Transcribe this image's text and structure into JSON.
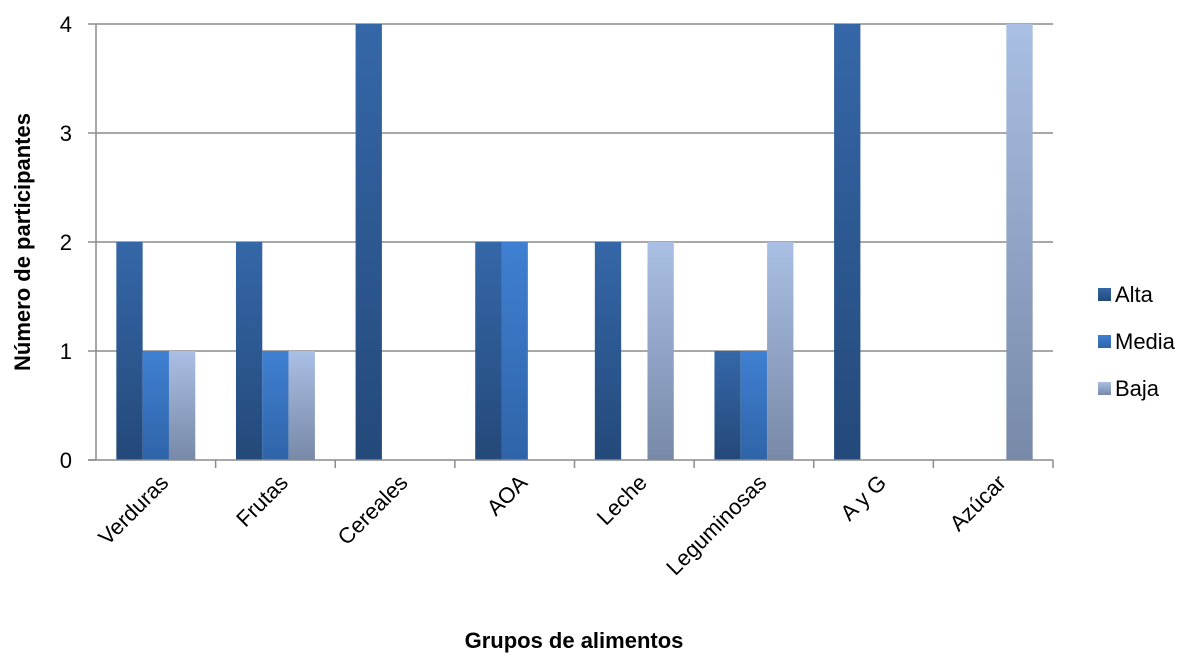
{
  "chart_data": {
    "type": "bar",
    "title": "",
    "xlabel": "Grupos de alimentos",
    "ylabel": "Número de participantes",
    "categories": [
      "Verduras",
      "Frutas",
      "Cereales",
      "AOA",
      "Leche",
      "Leguminosas",
      "A y G",
      "Azúcar"
    ],
    "series": [
      {
        "name": "Alta",
        "values": [
          2,
          2,
          4,
          2,
          2,
          1,
          4,
          0
        ],
        "color": "#2f5d98"
      },
      {
        "name": "Media",
        "values": [
          1,
          1,
          0,
          2,
          0,
          1,
          0,
          0
        ],
        "color": "#3a76c4"
      },
      {
        "name": "Baja",
        "values": [
          1,
          1,
          0,
          0,
          2,
          2,
          0,
          4
        ],
        "color": "#9fb5d9"
      }
    ],
    "ylim": [
      0,
      4
    ],
    "yticks": [
      0,
      1,
      2,
      3,
      4
    ],
    "grid": true,
    "legend_position": "right"
  }
}
